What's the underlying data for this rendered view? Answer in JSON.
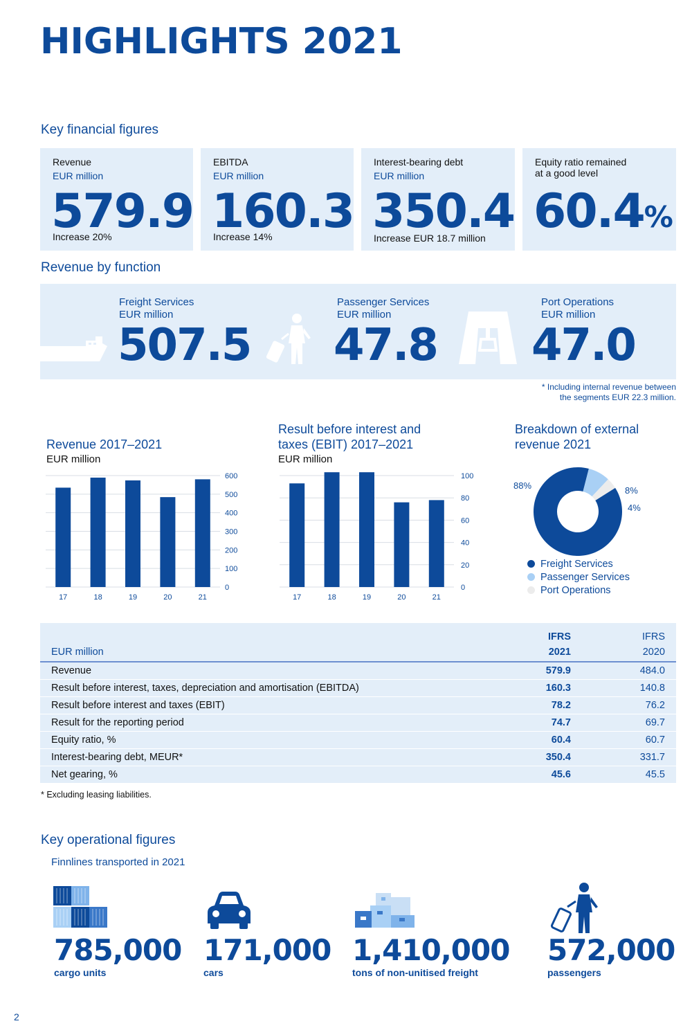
{
  "page_title": "HIGHLIGHTS 2021",
  "page_number": "2",
  "key_financial": {
    "heading": "Key financial figures",
    "cards": [
      {
        "label": "Revenue",
        "unit": "EUR million",
        "value": "579.9",
        "note": "Increase 20%"
      },
      {
        "label": "EBITDA",
        "unit": "EUR million",
        "value": "160.3",
        "note": "Increase 14%"
      },
      {
        "label": "Interest-bearing debt",
        "unit": "EUR million",
        "value": "350.4",
        "note": "Increase EUR 18.7 million"
      },
      {
        "label_line1": "Equity ratio remained",
        "label_line2": "at a good level",
        "value": "60.4",
        "suffix": "%"
      }
    ]
  },
  "revenue_by_function": {
    "heading": "Revenue by function",
    "items": [
      {
        "label": "Freight Services",
        "unit": "EUR million",
        "value": "507.5",
        "icon": "ship-icon"
      },
      {
        "label": "Passenger Services",
        "unit": "EUR million",
        "value": "47.8",
        "icon": "traveller-icon"
      },
      {
        "label": "Port Operations",
        "unit": "EUR million",
        "value": "47.0",
        "asterisk": "*",
        "icon": "port-crane-icon"
      }
    ],
    "footnote_line1": "* Including internal revenue between",
    "footnote_line2": "the segments EUR 22.3 million."
  },
  "chart_data": [
    {
      "type": "bar",
      "title": "Revenue 2017–2021",
      "unit": "EUR million",
      "categories": [
        "17",
        "18",
        "19",
        "20",
        "21"
      ],
      "values": [
        535,
        589,
        574,
        484,
        580
      ],
      "ylim": [
        0,
        600
      ],
      "yticks": [
        0,
        100,
        200,
        300,
        400,
        500,
        600
      ],
      "grid": true,
      "color": "#0d4a9a"
    },
    {
      "type": "bar",
      "title_line1": "Result before interest and",
      "title_line2": "taxes (EBIT) 2017–2021",
      "unit": "EUR million",
      "categories": [
        "17",
        "18",
        "19",
        "20",
        "21"
      ],
      "values": [
        93,
        103,
        103,
        76,
        78
      ],
      "ylim": [
        0,
        100
      ],
      "yticks": [
        0,
        20,
        40,
        60,
        80,
        100
      ],
      "grid": true,
      "color": "#0d4a9a"
    },
    {
      "type": "pie",
      "title_line1": "Breakdown of external",
      "title_line2": "revenue 2021",
      "labels": [
        "Freight Services",
        "Passenger Services",
        "Port Operations"
      ],
      "values": [
        88,
        8,
        4
      ],
      "value_labels": [
        "88%",
        "8%",
        "4%"
      ],
      "colors": [
        "#0d4a9a",
        "#a9d0f5",
        "#ececec"
      ]
    }
  ],
  "table": {
    "unit_label": "EUR million",
    "col2_top": "IFRS",
    "col2_bottom": "2021",
    "col3_top": "IFRS",
    "col3_bottom": "2020",
    "rows": [
      {
        "label": "Revenue",
        "v2021": "579.9",
        "v2020": "484.0"
      },
      {
        "label": "Result before interest, taxes, depreciation and amortisation (EBITDA)",
        "v2021": "160.3",
        "v2020": "140.8"
      },
      {
        "label": "Result before interest and taxes (EBIT)",
        "v2021": "78.2",
        "v2020": "76.2"
      },
      {
        "label": "Result for the reporting period",
        "v2021": "74.7",
        "v2020": "69.7"
      },
      {
        "label": "Equity ratio, %",
        "v2021": "60.4",
        "v2020": "60.7"
      },
      {
        "label": "Interest-bearing debt, MEUR*",
        "v2021": "350.4",
        "v2020": "331.7"
      },
      {
        "label": "Net gearing, %",
        "v2021": "45.6",
        "v2020": "45.5"
      }
    ],
    "footnote": "* Excluding leasing liabilities."
  },
  "operational": {
    "heading": "Key operational figures",
    "subheading": "Finnlines transported in 2021",
    "items": [
      {
        "value": "785,000",
        "label": "cargo units",
        "icon": "containers-icon"
      },
      {
        "value": "171,000",
        "label": "cars",
        "icon": "car-icon"
      },
      {
        "value": "1,410,000",
        "label": "tons of non-unitised freight",
        "icon": "freight-boxes-icon"
      },
      {
        "value": "572,000",
        "label": "passengers",
        "icon": "passenger-icon"
      }
    ]
  }
}
